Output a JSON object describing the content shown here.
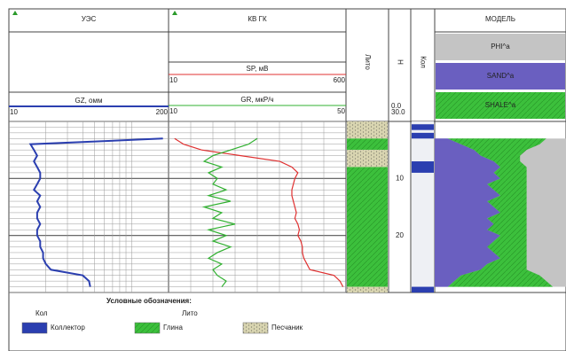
{
  "tracks": [
    {
      "title": "УЭС"
    },
    {
      "title": "КВ ГК"
    },
    {
      "title": "Лито"
    },
    {
      "title": "H"
    },
    {
      "title": "Кол"
    },
    {
      "title": "МОДЕЛЬ"
    }
  ],
  "curves": {
    "depth": [
      3,
      4,
      5,
      6,
      7,
      8,
      9,
      10,
      11,
      12,
      13,
      14,
      15,
      16,
      17,
      18,
      19,
      20,
      21,
      22,
      23,
      24,
      25,
      26,
      27,
      28,
      29
    ],
    "gz": {
      "name": "GZ, омм",
      "color": "#2b3fb0",
      "xlim": [
        10,
        200
      ],
      "log": true,
      "values": [
        180,
        15,
        16,
        17,
        16,
        17,
        18,
        18,
        17,
        16,
        18,
        17,
        18,
        17,
        17,
        18,
        17,
        17,
        18,
        18,
        19,
        19,
        20,
        22,
        40,
        45,
        46
      ]
    },
    "sp": {
      "name": "SP, мВ",
      "color": "#e03030",
      "xlim": [
        10,
        600
      ],
      "values": [
        30,
        60,
        120,
        250,
        380,
        420,
        440,
        430,
        425,
        420,
        420,
        425,
        430,
        435,
        430,
        440,
        445,
        440,
        450,
        455,
        455,
        460,
        470,
        480,
        560,
        580,
        590
      ]
    },
    "gr": {
      "name": "GR, мкР/ч",
      "color": "#30b030",
      "xlim": [
        10,
        50
      ],
      "values": [
        30,
        28,
        24,
        20,
        18,
        22,
        19,
        21,
        20,
        23,
        19,
        24,
        18,
        22,
        20,
        25,
        19,
        23,
        20,
        24,
        21,
        19,
        22,
        20,
        21,
        23,
        22
      ]
    }
  },
  "depth_axis": {
    "ylim": [
      0,
      30
    ],
    "range_labels": [
      {
        "value": 0,
        "label": "0.0"
      },
      {
        "value": 30,
        "label": "30.0"
      }
    ],
    "ticks": [
      10,
      20
    ]
  },
  "lithology": [
    {
      "top": 0,
      "bottom": 3,
      "rock": "Песчаник"
    },
    {
      "top": 3,
      "bottom": 5,
      "rock": "Глина"
    },
    {
      "top": 5,
      "bottom": 8,
      "rock": "Песчаник"
    },
    {
      "top": 8,
      "bottom": 29,
      "rock": "Глина"
    },
    {
      "top": 29,
      "bottom": 30,
      "rock": "Песчаник"
    }
  ],
  "collector": [
    {
      "top": 0.5,
      "bottom": 1.5
    },
    {
      "top": 2,
      "bottom": 3
    },
    {
      "top": 7,
      "bottom": 9
    },
    {
      "top": 29,
      "bottom": 30
    }
  ],
  "model": {
    "components": [
      {
        "label": "PHI^a",
        "color": "#c4c4c4"
      },
      {
        "label": "SAND^a",
        "color": "#6a5fc0"
      },
      {
        "label": "SHALE^a",
        "color": "#3cc03c"
      }
    ],
    "sand": [
      0.1,
      0.2,
      0.3,
      0.35,
      0.45,
      0.5,
      0.45,
      0.5,
      0.4,
      0.45,
      0.5,
      0.4,
      0.45,
      0.5,
      0.4,
      0.45,
      0.4,
      0.5,
      0.45,
      0.4,
      0.45,
      0.5,
      0.4,
      0.35,
      0.2,
      0.15,
      0.1
    ],
    "shale": [
      0.75,
      0.6,
      0.4,
      0.3,
      0.2,
      0.2,
      0.25,
      0.2,
      0.3,
      0.25,
      0.2,
      0.3,
      0.25,
      0.2,
      0.3,
      0.25,
      0.3,
      0.2,
      0.25,
      0.3,
      0.25,
      0.2,
      0.3,
      0.35,
      0.6,
      0.7,
      0.8
    ]
  },
  "legend": {
    "title": "Условные обозначения:",
    "groups": [
      {
        "title": "Кол",
        "items": [
          {
            "label": "Коллектор",
            "color": "#2b3fb0"
          }
        ]
      },
      {
        "title": "Лито",
        "items": [
          {
            "label": "Глина",
            "color": "#3cc03c"
          },
          {
            "label": "Песчаник",
            "color": "#d8d4b0"
          }
        ]
      }
    ]
  }
}
